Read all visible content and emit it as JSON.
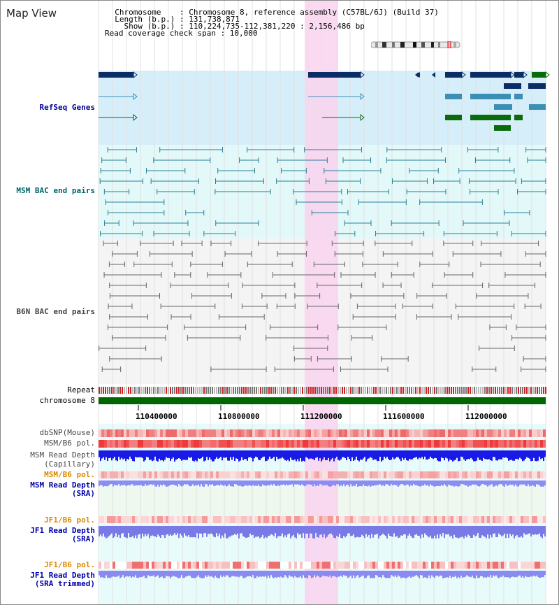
{
  "title": "Map View",
  "header": {
    "line1": "  Chromosome    : Chromosome 8, reference assembly (C57BL/6J) (Build 37)",
    "line2": "  Length (b.p.) : 131,738,871",
    "line3": "    Show (b.p.) : 110,224,735-112,381,220 : 2,156,486 bp",
    "line4": "Read coverage check span : 10,000"
  },
  "tracks": {
    "refseq": "RefSeq Genes",
    "msm_bac": "MSM BAC end pairs",
    "b6n_bac": "B6N BAC end pairs",
    "repeat": "Repeat",
    "chromosome": "chromosome 8",
    "dbsnp": "dbSNP(Mouse)",
    "msm_b6_pol": "MSM/B6 pol.",
    "msm_read_depth_cap_1": "MSM Read Depth",
    "msm_read_depth_cap_2": "(Capillary)",
    "msm_b6_pol_sra": "MSM/B6 pol.",
    "msm_read_depth_sra_1": "MSM Read Depth",
    "msm_read_depth_sra_2": "(SRA)",
    "jf1_b6_pol_1": "JF1/B6 pol.",
    "jf1_read_depth_sra_1": "JF1 Read Depth",
    "jf1_read_depth_sra_2": "(SRA)",
    "jf1_b6_pol_2": "JF1/B6 pol.",
    "jf1_read_depth_trim_1": "JF1 Read Depth",
    "jf1_read_depth_trim_2": "(SRA trimmed)"
  },
  "axis": {
    "ticks": [
      "110400000",
      "110800000",
      "111200000",
      "111600000",
      "112000000"
    ]
  },
  "colors": {
    "refseq_label": "#000099",
    "msm_label": "#006666",
    "b6n_label": "#444444",
    "jf1_label": "#0000aa",
    "pol_orange": "#dd8800",
    "highlight": "#f9d4ef",
    "chromosome_bar": "#006600"
  }
}
